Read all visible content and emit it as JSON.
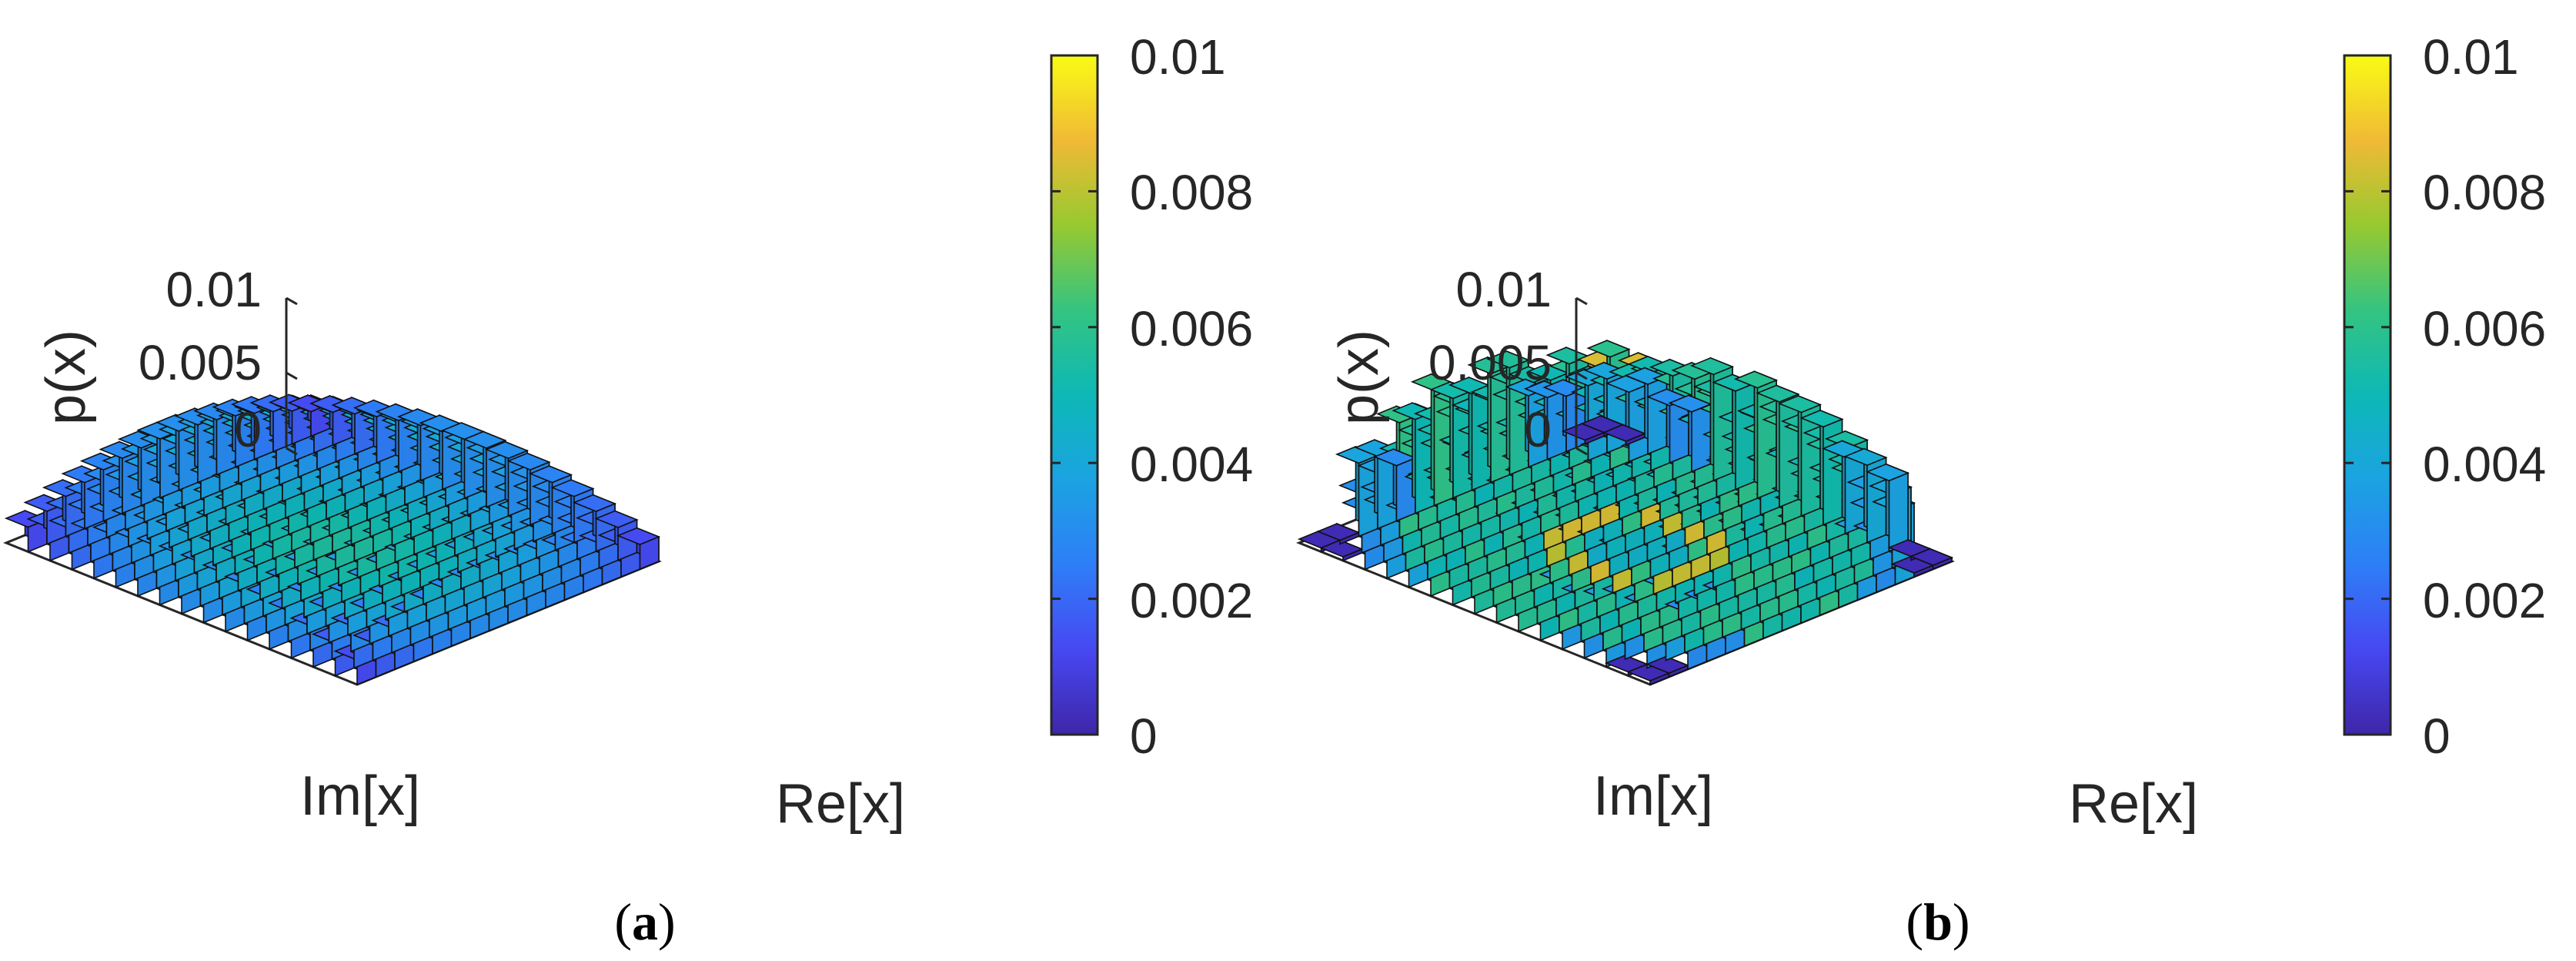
{
  "chart_data": [
    {
      "type": "bar3d",
      "panel_label": "a",
      "zlabel": "p(x)",
      "xlabel": "Re[x]",
      "ylabel": "Im[x]",
      "zticks": [
        "0",
        "0.005",
        "0.01"
      ],
      "zlim": [
        0,
        0.01
      ],
      "grid_size": 16,
      "distribution": "broad dome over a square grid; values rise smoothly from edges toward the center",
      "approx_values": {
        "corner": 0.0013,
        "edge_mid": 0.0025,
        "center": 0.0056
      },
      "colorbar": {
        "ticks": [
          "0",
          "0.002",
          "0.004",
          "0.006",
          "0.008",
          "0.01"
        ],
        "clim": [
          0,
          0.01
        ],
        "colormap": "parula"
      }
    },
    {
      "type": "bar3d",
      "panel_label": "b",
      "zlabel": "p(x)",
      "xlabel": "Re[x]",
      "ylabel": "Im[x]",
      "zticks": [
        "0",
        "0.005",
        "0.01"
      ],
      "zlim": [
        0,
        0.01
      ],
      "grid_size": 16,
      "distribution": "outer ring of bars about 0.005-0.006, inner ring of four bar clusters about 0.008, central dip; outer corners near zero",
      "approx_values": {
        "corner": 0.0002,
        "outer_ring": 0.0055,
        "inner_ring": 0.0082,
        "center": 0.0045
      },
      "colorbar": {
        "ticks": [
          "0",
          "0.002",
          "0.004",
          "0.006",
          "0.008",
          "0.01"
        ],
        "clim": [
          0,
          0.01
        ],
        "colormap": "parula"
      }
    }
  ]
}
